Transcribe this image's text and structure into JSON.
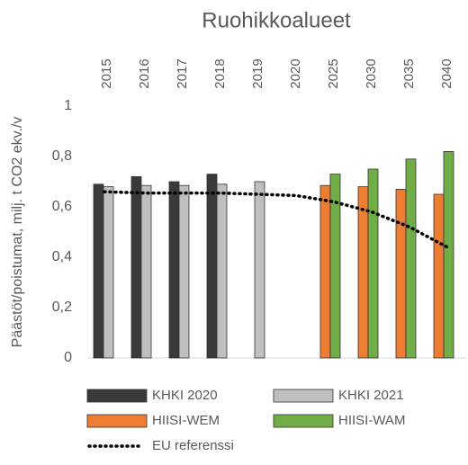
{
  "chart_data": {
    "type": "bar",
    "title": "Ruohikkoalueet",
    "y_label": "Päästöt/poistumat, milj. t CO2 ekv./v",
    "categories": [
      "2015",
      "2016",
      "2017",
      "2018",
      "2019",
      "2020",
      "2025",
      "2030",
      "2035",
      "2040"
    ],
    "series": [
      {
        "name": "KHKI 2020",
        "color": "#3a3a3a",
        "values": [
          0.69,
          0.72,
          0.7,
          0.73,
          null,
          null,
          null,
          null,
          null,
          null
        ]
      },
      {
        "name": "KHKI 2021",
        "color": "#bfbfbf",
        "values": [
          0.68,
          0.685,
          0.685,
          0.69,
          0.7,
          null,
          null,
          null,
          null,
          null
        ]
      },
      {
        "name": "HIISI-WEM",
        "color": "#ed7d31",
        "values": [
          null,
          null,
          null,
          null,
          null,
          null,
          0.685,
          0.68,
          0.67,
          0.65
        ]
      },
      {
        "name": "HIISI-WAM",
        "color": "#70ad47",
        "values": [
          null,
          null,
          null,
          null,
          null,
          null,
          0.73,
          0.75,
          0.79,
          0.82
        ]
      },
      {
        "name": "EU referenssi",
        "type": "line",
        "dash": "dotted",
        "color": "#000000",
        "values": [
          0.66,
          0.655,
          0.655,
          0.655,
          0.65,
          0.645,
          0.62,
          0.58,
          0.52,
          0.44
        ]
      }
    ],
    "ylim": [
      0,
      1
    ],
    "yticks": [
      0,
      {
        "value": 0.2,
        "label": "0,2"
      },
      {
        "value": 0.4,
        "label": "0,4"
      },
      {
        "value": 0.6,
        "label": "0,6"
      },
      {
        "value": 0.8,
        "label": "0,8"
      },
      1
    ]
  }
}
